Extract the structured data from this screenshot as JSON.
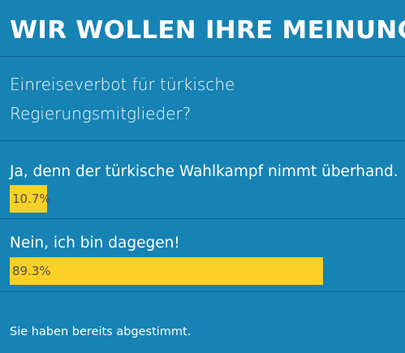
{
  "poll": {
    "title": "WIR WOLLEN IHRE MEINUNG.",
    "question": "Einreiseverbot für türkische Regierungsmitglieder?",
    "options": [
      {
        "label": "Ja, denn der türkische Wahlkampf nimmt überhand.",
        "percent_label": "10.7%",
        "percent": 10.7
      },
      {
        "label": "Nein, ich bin dagegen!",
        "percent_label": "89.3%",
        "percent": 89.3
      }
    ],
    "status": "Sie haben bereits abgestimmt."
  },
  "colors": {
    "background": "#1683b4",
    "divider": "#0e6792",
    "bar": "#fad026",
    "bar_text": "#4a4f55",
    "text": "#ffffff"
  }
}
